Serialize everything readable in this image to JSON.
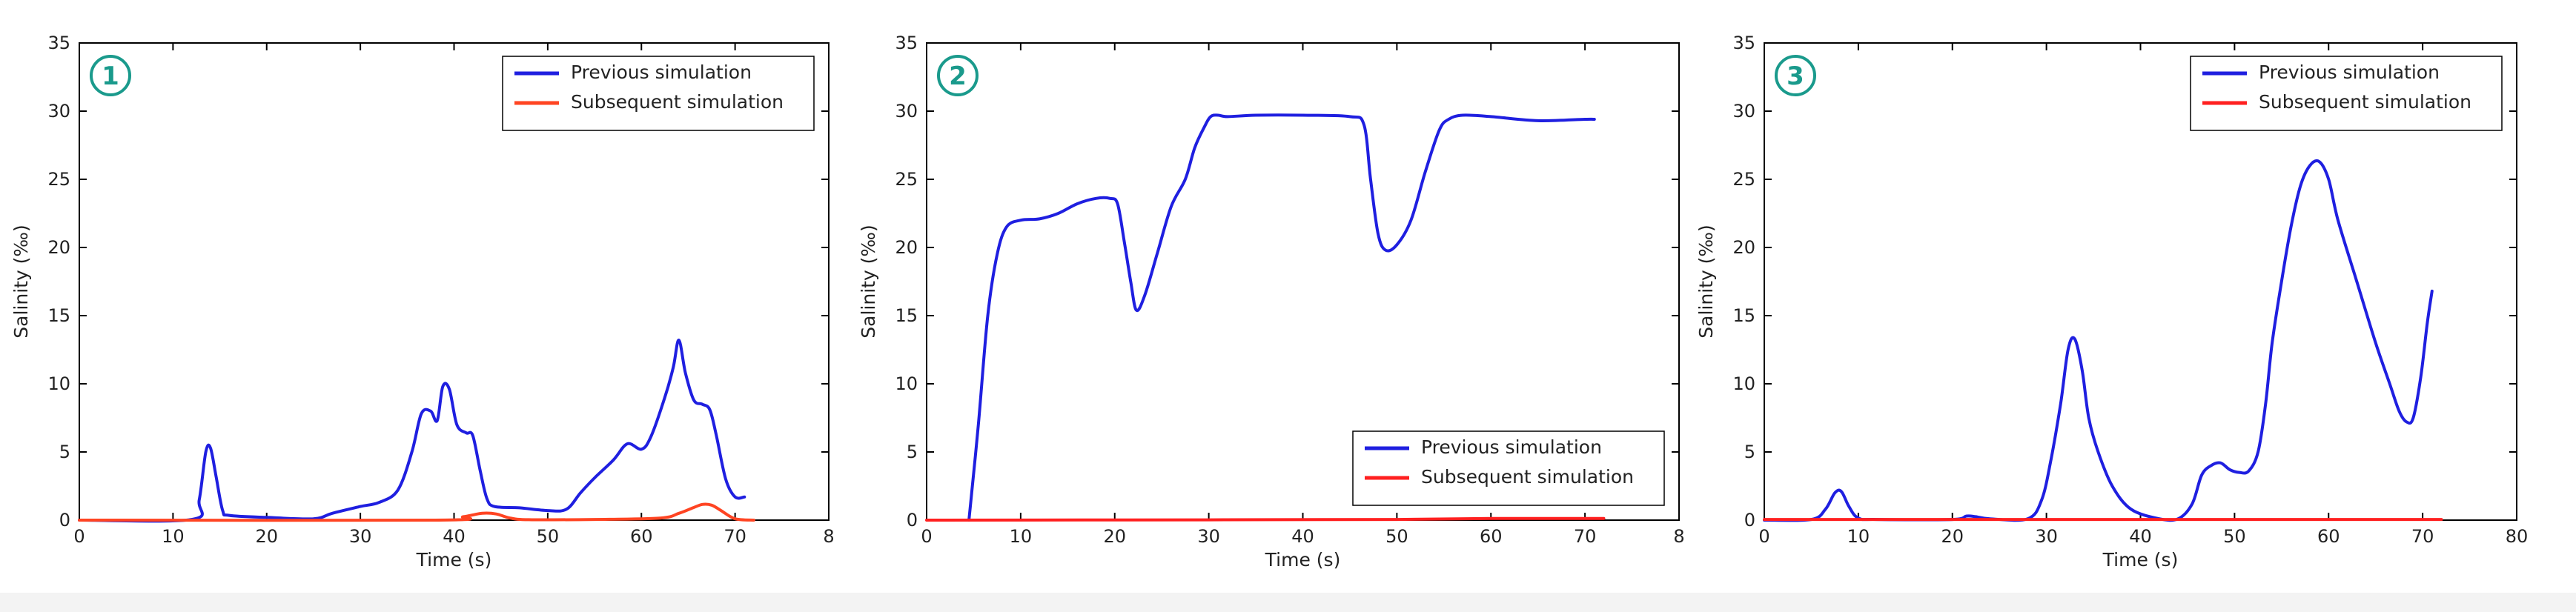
{
  "chart_data": [
    {
      "type": "line",
      "badge": "①",
      "xlabel": "Time (s)",
      "ylabel": "Salinity (‰)",
      "xlim": [
        0,
        80
      ],
      "ylim": [
        0,
        35
      ],
      "xticks": [
        "0",
        "10",
        "20",
        "30",
        "40",
        "50",
        "60",
        "70",
        "8"
      ],
      "yticks": [
        "0",
        "5",
        "10",
        "15",
        "20",
        "25",
        "30",
        "35"
      ],
      "legend_position": "top-right",
      "series": [
        {
          "name": "Previous simulation",
          "color": "#1f1fe0",
          "x": [
            0,
            12,
            12.8,
            13.5,
            14,
            14.6,
            15.3,
            16,
            20,
            25,
            27,
            30,
            32,
            34,
            35.5,
            36.5,
            37.5,
            38.2,
            38.8,
            39.5,
            40.3,
            41.3,
            42,
            42.8,
            43.5,
            44.3,
            47,
            50,
            52,
            53.5,
            55,
            57,
            58.5,
            60,
            61,
            62.5,
            63.4,
            64,
            64.7,
            65.6,
            66.5,
            67.3,
            68,
            69,
            70,
            71
          ],
          "y": [
            0,
            0.05,
            1.5,
            5.0,
            5.3,
            3.2,
            0.7,
            0.35,
            0.2,
            0.1,
            0.5,
            1.0,
            1.3,
            2.2,
            5.0,
            7.8,
            8.0,
            7.3,
            9.8,
            9.6,
            7.0,
            6.4,
            6.2,
            3.6,
            1.6,
            1.0,
            0.9,
            0.7,
            0.8,
            2.0,
            3.1,
            4.4,
            5.6,
            5.2,
            6.1,
            9.0,
            11.2,
            13.2,
            10.8,
            8.8,
            8.5,
            8.1,
            6.2,
            3.0,
            1.7,
            1.7
          ]
        },
        {
          "name": "Subsequent simulation",
          "color": "#ff4422",
          "x": [
            0,
            38,
            41,
            43,
            44.5,
            46,
            48,
            55,
            62,
            64,
            65.5,
            66.5,
            67.5,
            68.5,
            70,
            72
          ],
          "y": [
            0,
            0,
            0.25,
            0.5,
            0.45,
            0.15,
            0.03,
            0.05,
            0.15,
            0.5,
            0.9,
            1.15,
            1.1,
            0.7,
            0.1,
            0
          ]
        }
      ]
    },
    {
      "type": "line",
      "badge": "②",
      "xlabel": "Time (s)",
      "ylabel": "Salinity (‰)",
      "xlim": [
        0,
        80
      ],
      "ylim": [
        0,
        35
      ],
      "xticks": [
        "0",
        "10",
        "20",
        "30",
        "40",
        "50",
        "60",
        "70",
        "8"
      ],
      "yticks": [
        "0",
        "5",
        "10",
        "15",
        "20",
        "25",
        "30",
        "35"
      ],
      "legend_position": "bottom-right",
      "series": [
        {
          "name": "Previous simulation",
          "color": "#1f1fe0",
          "x": [
            4.5,
            5.5,
            6.5,
            7.5,
            8.5,
            10,
            12,
            14,
            16,
            18,
            19.5,
            20.3,
            21,
            21.7,
            22.3,
            23.2,
            24.5,
            26,
            27.5,
            28.5,
            29.5,
            30.2,
            31,
            32,
            35,
            40,
            45,
            46.5,
            47.2,
            48,
            48.8,
            50,
            51.5,
            53,
            54.5,
            55.5,
            57,
            60,
            65,
            70,
            71
          ],
          "y": [
            0,
            7,
            15,
            19.5,
            21.5,
            22,
            22.1,
            22.5,
            23.2,
            23.6,
            23.6,
            23.2,
            20.5,
            17.5,
            15.4,
            16.5,
            19.5,
            23,
            25,
            27.3,
            28.8,
            29.6,
            29.7,
            29.6,
            29.7,
            29.7,
            29.6,
            29.0,
            25.0,
            21.0,
            19.8,
            20.2,
            22.0,
            25.5,
            28.6,
            29.4,
            29.7,
            29.6,
            29.3,
            29.4,
            29.4
          ]
        },
        {
          "name": "Subsequent simulation",
          "color": "#ff2020",
          "x": [
            0,
            30,
            50,
            60,
            72
          ],
          "y": [
            0,
            0.02,
            0.05,
            0.12,
            0.12
          ]
        }
      ]
    },
    {
      "type": "line",
      "badge": "③",
      "xlabel": "Time (s)",
      "ylabel": "Salinity (‰)",
      "xlim": [
        0,
        80
      ],
      "ylim": [
        0,
        35
      ],
      "xticks": [
        "0",
        "10",
        "20",
        "30",
        "40",
        "50",
        "60",
        "70",
        "80"
      ],
      "yticks": [
        "0",
        "5",
        "10",
        "15",
        "20",
        "25",
        "30",
        "35"
      ],
      "legend_position": "top-right",
      "series": [
        {
          "name": "Previous simulation",
          "color": "#1f1fe0",
          "x": [
            0,
            5,
            6.5,
            7.5,
            8.2,
            9,
            10,
            12,
            20,
            21.5,
            22.5,
            24,
            28,
            29.5,
            30.5,
            31.5,
            32.3,
            33,
            33.8,
            34.5,
            35.5,
            37,
            39,
            42,
            44,
            45.5,
            46.5,
            47.5,
            48.5,
            49.5,
            50.5,
            51.5,
            52.5,
            53.3,
            54,
            55,
            56,
            57,
            58,
            59,
            60,
            61,
            63,
            65,
            66.5,
            67.5,
            68.3,
            69,
            69.8,
            70.5,
            71
          ],
          "y": [
            0,
            0.05,
            0.8,
            2.0,
            2.1,
            1.0,
            0.15,
            0.05,
            0.05,
            0.3,
            0.25,
            0.1,
            0.1,
            1.5,
            4.5,
            8.5,
            12.5,
            13.3,
            11.0,
            7.5,
            5.0,
            2.5,
            0.8,
            0.1,
            0.1,
            1.2,
            3.3,
            4.0,
            4.2,
            3.7,
            3.5,
            3.6,
            5.0,
            8.5,
            13.0,
            17.5,
            21.5,
            24.5,
            26.0,
            26.3,
            25.0,
            22.0,
            17.5,
            13.0,
            10.0,
            8.0,
            7.2,
            7.5,
            10.5,
            14.5,
            16.8
          ]
        },
        {
          "name": "Subsequent simulation",
          "color": "#ff2020",
          "x": [
            0,
            72
          ],
          "y": [
            0.05,
            0.05
          ]
        }
      ]
    }
  ]
}
